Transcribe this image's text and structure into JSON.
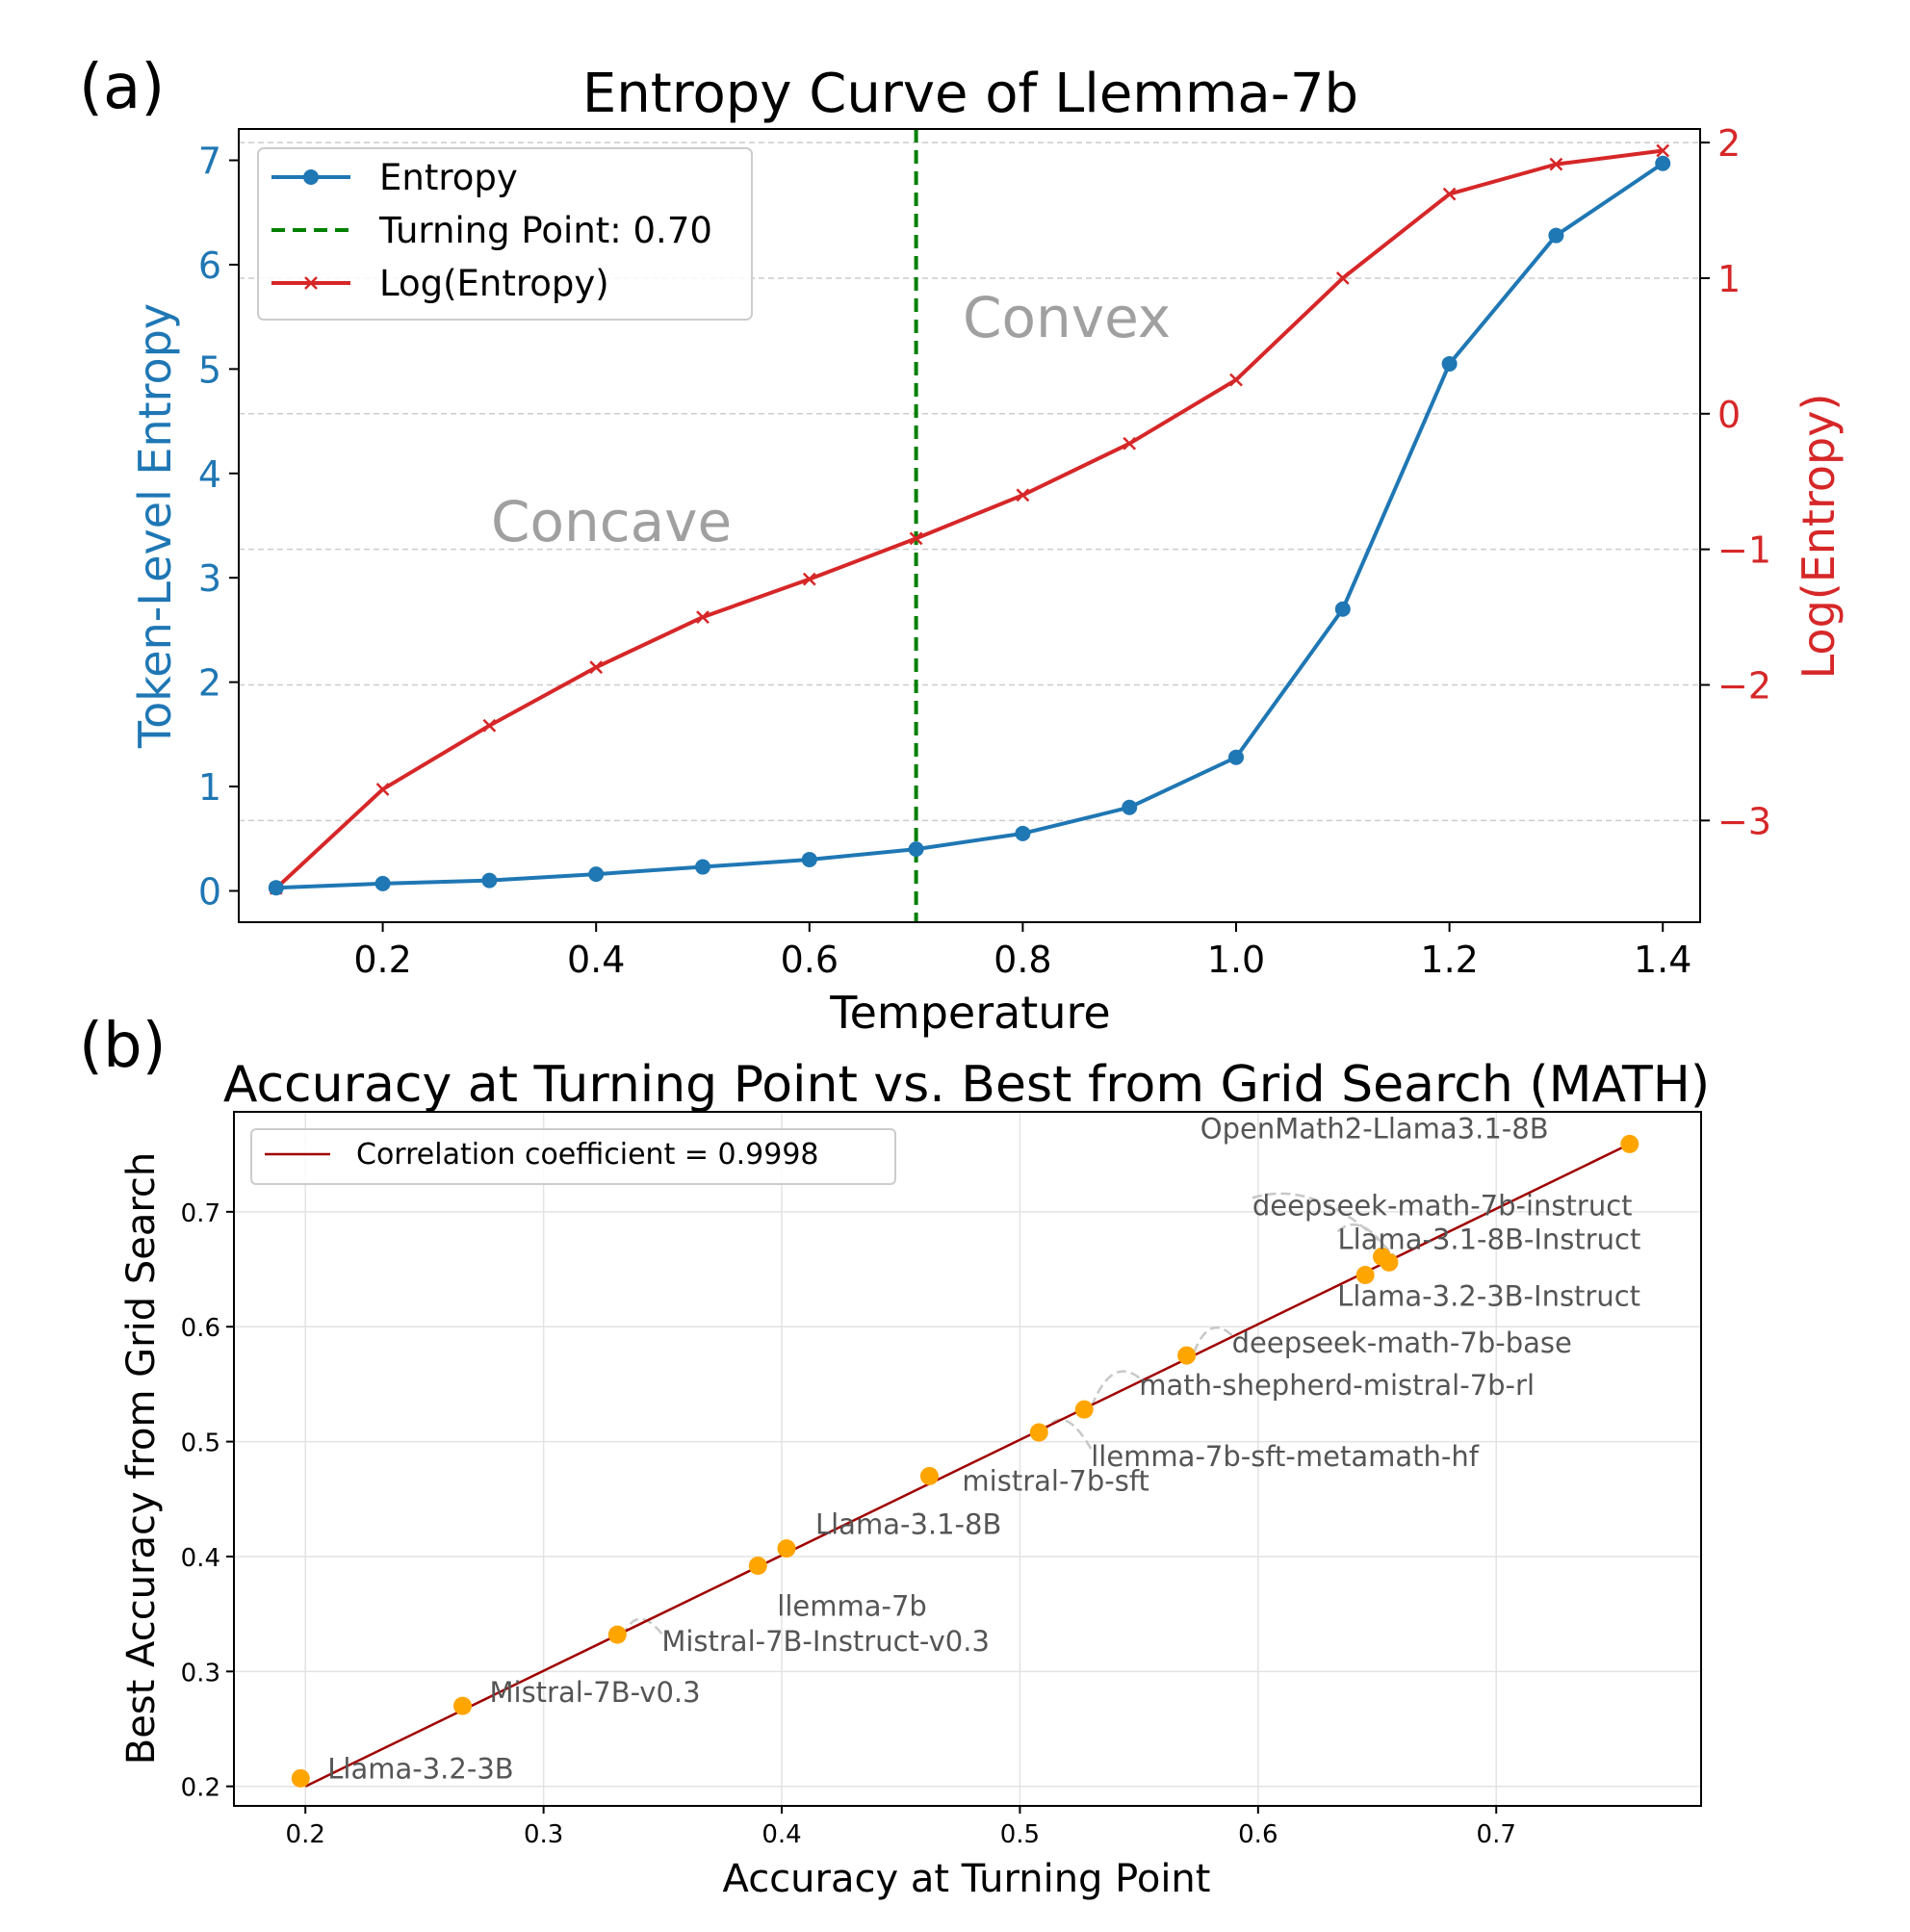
{
  "panel_a": {
    "label": "(a)",
    "title": "Entropy Curve of Llemma-7b",
    "xlabel": "Temperature",
    "ylabel_left": "Token-Level Entropy",
    "ylabel_right": "Log(Entropy)",
    "annotations": {
      "concave": "Concave",
      "convex": "Convex"
    },
    "legend": {
      "entropy": "Entropy",
      "turning": "Turning Point: 0.70",
      "log": "Log(Entropy)"
    },
    "colors": {
      "entropy": "#1f77b4",
      "log": "#d62728",
      "turning": "#008000",
      "annotation": "#a0a0a0"
    }
  },
  "panel_b": {
    "label": "(b)",
    "title": "Accuracy at Turning Point vs. Best from Grid Search (MATH)",
    "xlabel": "Accuracy at Turning Point",
    "ylabel": "Best Accuracy from Grid Search",
    "legend": {
      "corr": "Correlation coefficient = 0.9998"
    },
    "colors": {
      "points": "#ffa500",
      "line": "#a00000",
      "text": "#555555"
    }
  },
  "chart_data": [
    {
      "type": "line",
      "title": "Entropy Curve of Llemma-7b",
      "xlabel": "Temperature",
      "ylabel": "Token-Level Entropy",
      "ylabel_right": "Log(Entropy)",
      "xlim": [
        0.065,
        1.435
      ],
      "ylim": [
        -0.3,
        7.3
      ],
      "ylim_right": [
        -3.75,
        2.1
      ],
      "x_ticks": [
        "0.2",
        "0.4",
        "0.6",
        "0.8",
        "1.0",
        "1.2",
        "1.4"
      ],
      "y_ticks": [
        "0",
        "1",
        "2",
        "3",
        "4",
        "5",
        "6",
        "7"
      ],
      "y_ticks_right": [
        "−3",
        "−2",
        "−1",
        "0",
        "1",
        "2"
      ],
      "x": [
        0.1,
        0.2,
        0.3,
        0.4,
        0.5,
        0.6,
        0.7,
        0.8,
        0.9,
        1.0,
        1.1,
        1.2,
        1.3,
        1.4
      ],
      "series": [
        {
          "name": "Entropy",
          "axis": "left",
          "marker": "circle",
          "values": [
            0.03,
            0.07,
            0.1,
            0.16,
            0.23,
            0.3,
            0.4,
            0.55,
            0.8,
            1.28,
            2.7,
            5.05,
            6.28,
            6.97
          ]
        },
        {
          "name": "Log(Entropy)",
          "axis": "right",
          "marker": "x",
          "values": [
            -3.5,
            -2.77,
            -2.3,
            -1.87,
            -1.5,
            -1.22,
            -0.92,
            -0.6,
            -0.22,
            0.25,
            1.0,
            1.62,
            1.84,
            1.94
          ]
        }
      ],
      "vline": {
        "name": "Turning Point: 0.70",
        "x": 0.7,
        "style": "dashed"
      },
      "grid": "horizontal dashed",
      "legend_position": "top-left"
    },
    {
      "type": "scatter",
      "title": "Accuracy at Turning Point vs. Best from Grid Search (MATH)",
      "xlabel": "Accuracy at Turning Point",
      "ylabel": "Best Accuracy from Grid Search",
      "xlim": [
        0.17,
        0.786
      ],
      "ylim": [
        0.183,
        0.787
      ],
      "x_ticks": [
        "0.2",
        "0.3",
        "0.4",
        "0.5",
        "0.6",
        "0.7"
      ],
      "y_ticks": [
        "0.2",
        "0.3",
        "0.4",
        "0.5",
        "0.6",
        "0.7"
      ],
      "points": [
        {
          "label": "Llama-3.2-3B",
          "x": 0.198,
          "y": 0.207
        },
        {
          "label": "Mistral-7B-v0.3",
          "x": 0.266,
          "y": 0.27
        },
        {
          "label": "Mistral-7B-Instruct-v0.3",
          "x": 0.331,
          "y": 0.332
        },
        {
          "label": "llemma-7b",
          "x": 0.39,
          "y": 0.392
        },
        {
          "label": "Llama-3.1-8B",
          "x": 0.402,
          "y": 0.407
        },
        {
          "label": "mistral-7b-sft",
          "x": 0.462,
          "y": 0.47
        },
        {
          "label": "llemma-7b-sft-metamath-hf",
          "x": 0.508,
          "y": 0.508
        },
        {
          "label": "math-shepherd-mistral-7b-rl",
          "x": 0.527,
          "y": 0.528
        },
        {
          "label": "deepseek-math-7b-base",
          "x": 0.57,
          "y": 0.575
        },
        {
          "label": "Llama-3.2-3B-Instruct",
          "x": 0.645,
          "y": 0.645
        },
        {
          "label": "Llama-3.1-8B-Instruct",
          "x": 0.652,
          "y": 0.661
        },
        {
          "label": "deepseek-math-7b-instruct",
          "x": 0.655,
          "y": 0.656
        },
        {
          "label": "OpenMath2-Llama3.1-8B",
          "x": 0.756,
          "y": 0.759
        }
      ],
      "fit_line": {
        "name": "Correlation coefficient = 0.9998",
        "x": [
          0.2,
          0.756
        ],
        "y": [
          0.2,
          0.759
        ]
      },
      "grid": true,
      "legend_position": "top-left"
    }
  ]
}
